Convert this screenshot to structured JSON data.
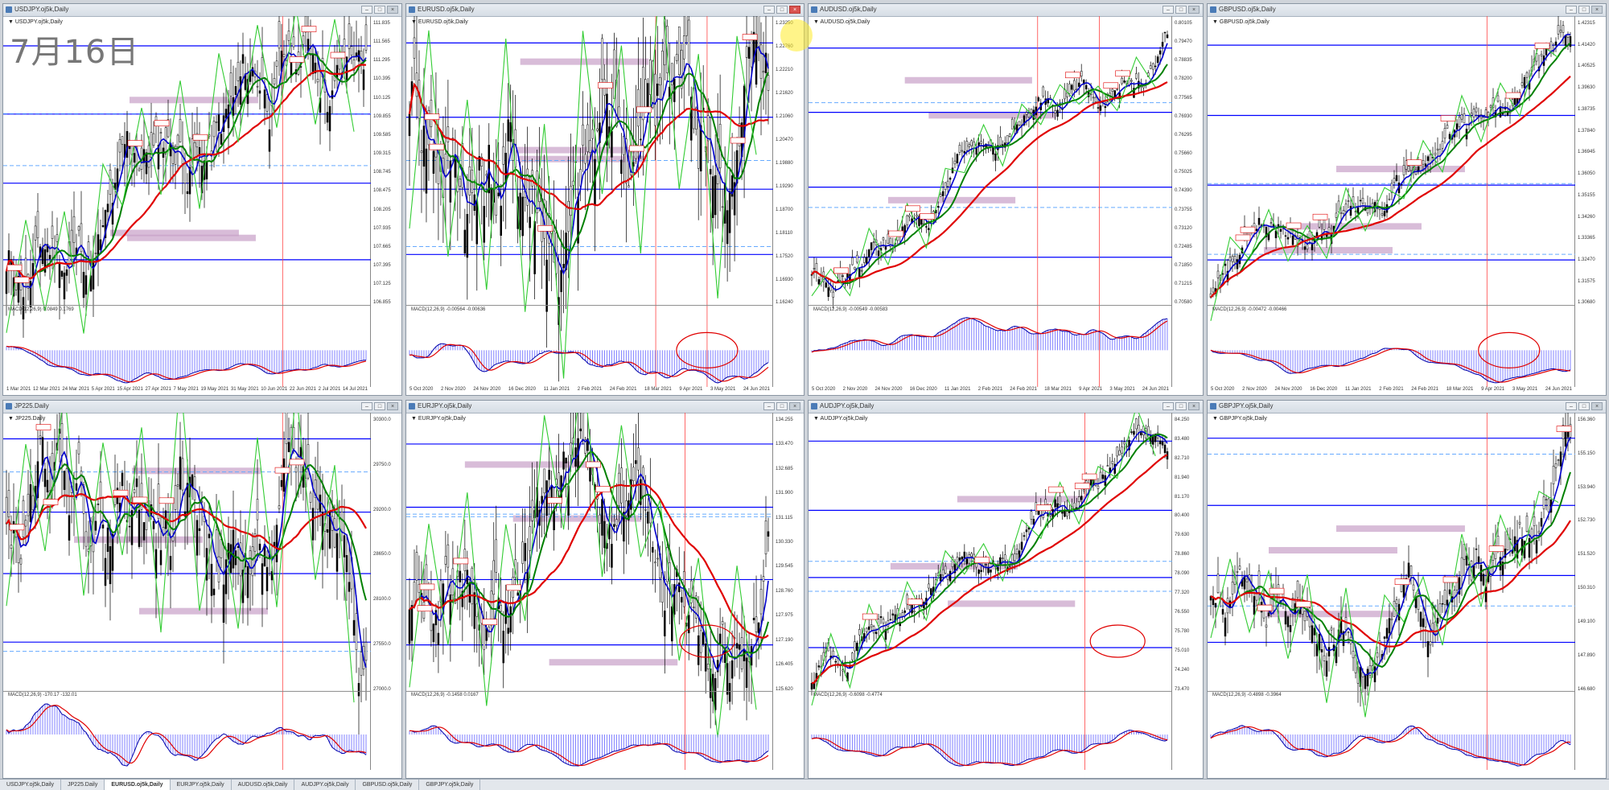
{
  "overlay_text": "7月16日",
  "windows": [
    {
      "title": "USDJPY.oj5k,Daily",
      "symbol": "USDJPY.oj5k,Daily",
      "macd": "MACD(12,26,9) 0.0849 0.1769",
      "ticks": [
        "111.835",
        "111.565",
        "111.295",
        "110.395",
        "110.125",
        "109.855",
        "109.585",
        "109.315",
        "108.745",
        "108.475",
        "108.205",
        "107.935",
        "107.665",
        "107.395",
        "107.125",
        "106.855"
      ],
      "dates": [
        "1 Mar 2021",
        "12 Mar 2021",
        "24 Mar 2021",
        "5 Apr 2021",
        "15 Apr 2021",
        "27 Apr 2021",
        "7 May 2021",
        "19 May 2021",
        "31 May 2021",
        "10 Jun 2021",
        "22 Jun 2021",
        "2 Jul 2021",
        "14 Jul 2021"
      ]
    },
    {
      "title": "EURUSD.oj5k,Daily",
      "symbol": "EURUSD.oj5k,Daily",
      "macd": "MACD(12,26,9) -0.00564 -0.00636",
      "ticks": [
        "1.23250",
        "1.22760",
        "1.22210",
        "1.21620",
        "1.21060",
        "1.20470",
        "1.19880",
        "1.19290",
        "1.18700",
        "1.18110",
        "1.17520",
        "1.16930",
        "1.16240"
      ],
      "dates": [
        "5 Oct 2020",
        "2 Nov 2020",
        "24 Nov 2020",
        "16 Dec 2020",
        "11 Jan 2021",
        "2 Feb 2021",
        "24 Feb 2021",
        "18 Mar 2021",
        "9 Apr 2021",
        "3 May 2021",
        "24 Jun 2021"
      ]
    },
    {
      "title": "AUDUSD.oj5k,Daily",
      "symbol": "AUDUSD.oj5k,Daily",
      "macd": "MACD(12,26,9) -0.00549 -0.00583",
      "ticks": [
        "0.80105",
        "0.79470",
        "0.78835",
        "0.78200",
        "0.77565",
        "0.76930",
        "0.76295",
        "0.75660",
        "0.75025",
        "0.74390",
        "0.73755",
        "0.73120",
        "0.72485",
        "0.71850",
        "0.71215",
        "0.70580"
      ],
      "dates": [
        "5 Oct 2020",
        "2 Nov 2020",
        "24 Nov 2020",
        "16 Dec 2020",
        "11 Jan 2021",
        "2 Feb 2021",
        "24 Feb 2021",
        "18 Mar 2021",
        "9 Apr 2021",
        "3 May 2021",
        "24 Jun 2021"
      ]
    },
    {
      "title": "GBPUSD.oj5k,Daily",
      "symbol": "GBPUSD.oj5k,Daily",
      "macd": "MACD(12,26,9) -0.00472 -0.00466",
      "ticks": [
        "1.42315",
        "1.41420",
        "1.40525",
        "1.39630",
        "1.38735",
        "1.37840",
        "1.36945",
        "1.36050",
        "1.35155",
        "1.34260",
        "1.33365",
        "1.32470",
        "1.31575",
        "1.30680"
      ],
      "dates": [
        "5 Oct 2020",
        "2 Nov 2020",
        "24 Nov 2020",
        "16 Dec 2020",
        "11 Jan 2021",
        "2 Feb 2021",
        "24 Feb 2021",
        "18 Mar 2021",
        "9 Apr 2021",
        "3 May 2021",
        "24 Jun 2021"
      ]
    },
    {
      "title": "JP225.Daily",
      "symbol": "JP225.Daily",
      "macd": "MACD(12,26,9) -170.17 -132.01",
      "ticks": [
        "30300.0",
        "29750.0",
        "29200.0",
        "28650.0",
        "28100.0",
        "27550.0",
        "27000.0"
      ],
      "dates": [
        "",
        "",
        "",
        "",
        "",
        "",
        "",
        "",
        ""
      ]
    },
    {
      "title": "EURJPY.oj5k,Daily",
      "symbol": "EURJPY.oj5k,Daily",
      "macd": "MACD(12,26,9) -0.1458 0.0167",
      "ticks": [
        "134.255",
        "133.470",
        "132.685",
        "131.900",
        "131.115",
        "130.330",
        "129.545",
        "128.760",
        "127.975",
        "127.190",
        "126.405",
        "125.620"
      ],
      "dates": [
        "",
        "",
        "",
        "",
        "",
        "",
        "",
        "",
        ""
      ]
    },
    {
      "title": "AUDJPY.oj5k,Daily",
      "symbol": "AUDJPY.oj5k,Daily",
      "macd": "MACD(12,26,9) -0.6098 -0.4774",
      "ticks": [
        "84.250",
        "83.480",
        "82.710",
        "81.940",
        "81.170",
        "80.400",
        "79.630",
        "78.860",
        "78.090",
        "77.320",
        "76.550",
        "75.780",
        "75.010",
        "74.240",
        "73.470"
      ],
      "dates": [
        "",
        "",
        "",
        "",
        "",
        "",
        "",
        "",
        ""
      ]
    },
    {
      "title": "GBPJPY.oj5k,Daily",
      "symbol": "GBPJPY.oj5k,Daily",
      "macd": "MACD(12,26,9) -0.4898 -0.3964",
      "ticks": [
        "156.360",
        "155.150",
        "153.940",
        "152.730",
        "151.520",
        "150.310",
        "149.100",
        "147.890",
        "146.680"
      ],
      "dates": [
        "",
        "",
        "",
        "",
        "",
        "",
        "",
        "",
        ""
      ]
    }
  ],
  "tabs": [
    "USDJPY.oj5k,Daily",
    "JP225.Daily",
    "EURUSD.oj5k,Daily",
    "EURJPY.oj5k,Daily",
    "AUDUSD.oj5k,Daily",
    "AUDJPY.oj5k,Daily",
    "GBPUSD.oj5k,Daily",
    "GBPJPY.oj5k,Daily"
  ],
  "active_tab": 2,
  "colors": {
    "ma_fast": "#0000cc",
    "ma_mid": "#008000",
    "ma_slow": "#e00000",
    "zigzag": "#33cc33",
    "hband": "#c8a0c8",
    "hline": "#0000ff",
    "dash": "#66aaff",
    "macd_hist": "#8080ff",
    "signal": "#e00000",
    "circle": "#e00000"
  }
}
